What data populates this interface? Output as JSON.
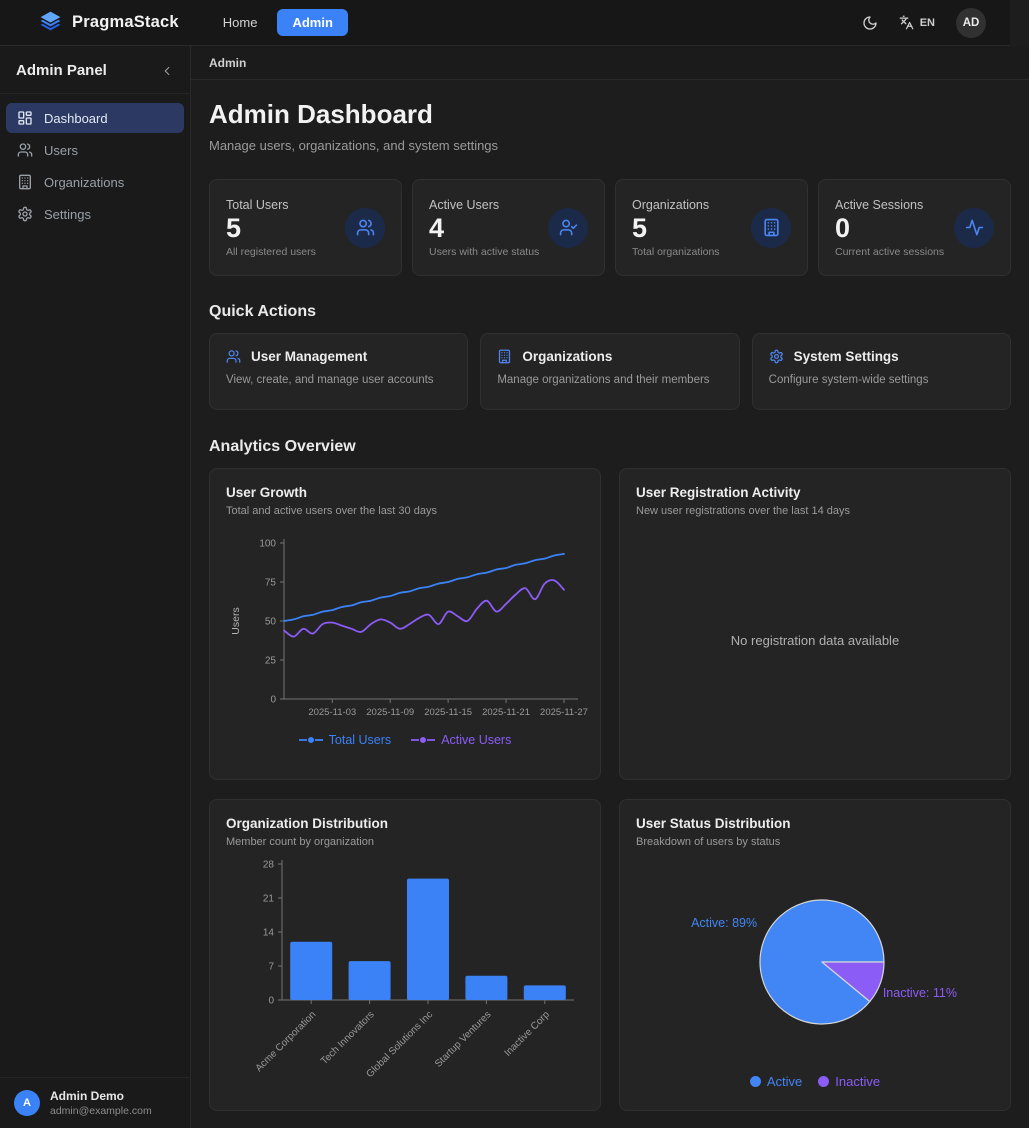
{
  "navbar": {
    "brand": "PragmaStack",
    "nav": [
      {
        "label": "Home",
        "active": false
      },
      {
        "label": "Admin",
        "active": true
      }
    ],
    "language": "EN",
    "avatar_initials": "AD"
  },
  "sidebar": {
    "title": "Admin Panel",
    "items": [
      {
        "label": "Dashboard",
        "icon": "dashboard-grid-icon",
        "active": true
      },
      {
        "label": "Users",
        "icon": "users-icon",
        "active": false
      },
      {
        "label": "Organizations",
        "icon": "building-icon",
        "active": false
      },
      {
        "label": "Settings",
        "icon": "gear-icon",
        "active": false
      }
    ],
    "user": {
      "name": "Admin Demo",
      "email": "admin@example.com",
      "avatar_initial": "A"
    }
  },
  "breadcrumb": "Admin",
  "header": {
    "title": "Admin Dashboard",
    "subtitle": "Manage users, organizations, and system settings"
  },
  "stats": [
    {
      "label": "Total Users",
      "value": "5",
      "description": "All registered users",
      "icon": "users-icon"
    },
    {
      "label": "Active Users",
      "value": "4",
      "description": "Users with active status",
      "icon": "user-check-icon"
    },
    {
      "label": "Organizations",
      "value": "5",
      "description": "Total organizations",
      "icon": "building-icon"
    },
    {
      "label": "Active Sessions",
      "value": "0",
      "description": "Current active sessions",
      "icon": "activity-icon"
    }
  ],
  "quick_actions": {
    "heading": "Quick Actions",
    "cards": [
      {
        "title": "User Management",
        "description": "View, create, and manage user accounts",
        "icon": "users-icon"
      },
      {
        "title": "Organizations",
        "description": "Manage organizations and their members",
        "icon": "building-icon"
      },
      {
        "title": "System Settings",
        "description": "Configure system-wide settings",
        "icon": "gear-icon"
      }
    ]
  },
  "analytics_heading": "Analytics Overview",
  "colors": {
    "accent_blue": "#3b82f6",
    "accent_purple": "#8b5cf6",
    "pie_blue": "#4285f4",
    "axis": "#737373",
    "tick_text": "#9a9a9a"
  },
  "chart_data": [
    {
      "type": "line",
      "title": "User Growth",
      "subtitle": "Total and active users over the last 30 days",
      "ylabel": "Users",
      "ylim": [
        0,
        100
      ],
      "yticks": [
        0,
        25,
        50,
        75,
        100
      ],
      "xticklabels": [
        "2025-11-03",
        "2025-11-09",
        "2025-11-15",
        "2025-11-21",
        "2025-11-27"
      ],
      "xtick_indices": [
        5,
        11,
        17,
        23,
        29
      ],
      "grid": false,
      "legend_position": "bottom",
      "series": [
        {
          "name": "Total Users",
          "color": "#3b82f6",
          "values": [
            50,
            51,
            53,
            54,
            56,
            57,
            59,
            60,
            62,
            63,
            65,
            66,
            68,
            69,
            71,
            72,
            74,
            75,
            77,
            78,
            80,
            81,
            83,
            84,
            86,
            87,
            89,
            90,
            92,
            93
          ]
        },
        {
          "name": "Active Users",
          "color": "#8b5cf6",
          "values": [
            44,
            40,
            45,
            42,
            48,
            49,
            47,
            45,
            43,
            48,
            51,
            49,
            45,
            48,
            52,
            54,
            48,
            56,
            53,
            50,
            58,
            63,
            56,
            61,
            67,
            71,
            64,
            74,
            76,
            70
          ]
        }
      ]
    },
    {
      "type": "empty",
      "title": "User Registration Activity",
      "subtitle": "New user registrations over the last 14 days",
      "empty_message": "No registration data available"
    },
    {
      "type": "bar",
      "title": "Organization Distribution",
      "subtitle": "Member count by organization",
      "categories": [
        "Acme Corporation",
        "Tech Innovators",
        "Global Solutions Inc",
        "Startup Ventures",
        "Inactive Corp"
      ],
      "values": [
        12,
        8,
        25,
        5,
        3
      ],
      "ylim": [
        0,
        28
      ],
      "yticks": [
        0,
        7,
        14,
        21,
        28
      ],
      "bar_color": "#3b82f6"
    },
    {
      "type": "pie",
      "title": "User Status Distribution",
      "subtitle": "Breakdown of users by status",
      "slices": [
        {
          "label": "Active",
          "pct": 89,
          "color": "#4285f4"
        },
        {
          "label": "Inactive",
          "pct": 11,
          "color": "#8b5cf6"
        }
      ],
      "legend": [
        "Active",
        "Inactive"
      ]
    }
  ]
}
